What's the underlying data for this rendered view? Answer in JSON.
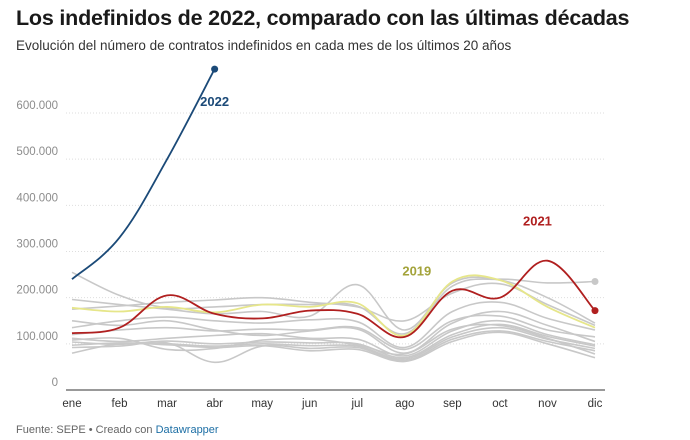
{
  "header": {
    "title": "Los indefinidos de 2022, comparado con las últimas décadas",
    "subtitle": "Evolución del número de contratos indefinidos en cada mes de los últimos 20 años"
  },
  "footer": {
    "source_text": "Fuente: SEPE • Creado con ",
    "link_text": "Datawrapper"
  },
  "colors": {
    "background_series": "#c8c8c8",
    "series_2022": "#1b4a78",
    "series_2021": "#b01f1f",
    "series_2019": "#e6e68a",
    "label_2019": "#a3a33a",
    "grid": "#dedede",
    "tick": "#8c8c8c"
  },
  "chart_data": {
    "type": "line",
    "title": "Los indefinidos de 2022, comparado con las últimas décadas",
    "subtitle": "Evolución del número de contratos indefinidos en cada mes de los últimos 20 años",
    "xlabel": "",
    "ylabel": "",
    "categories": [
      "ene",
      "feb",
      "mar",
      "abr",
      "may",
      "jun",
      "jul",
      "ago",
      "sep",
      "oct",
      "nov",
      "dic"
    ],
    "ylim": [
      0,
      600000
    ],
    "yticks": [
      0,
      100000,
      200000,
      300000,
      400000,
      500000,
      600000
    ],
    "ytick_labels": [
      "0",
      "100.000",
      "200.000",
      "300.000",
      "400.000",
      "500.000",
      "600.000"
    ],
    "grid": true,
    "highlighted": [
      {
        "name": "2022",
        "color": "#1b4a78",
        "label_color": "#1b4a78",
        "values": [
          240000,
          330000,
          500000,
          695000,
          null,
          null,
          null,
          null,
          null,
          null,
          null,
          null
        ]
      },
      {
        "name": "2021",
        "color": "#b01f1f",
        "label_color": "#b01f1f",
        "values": [
          123000,
          135000,
          205000,
          165000,
          155000,
          172000,
          165000,
          115000,
          215000,
          200000,
          280000,
          172000
        ]
      },
      {
        "name": "2019",
        "color": "#e6e68a",
        "label_color": "#a3a33a",
        "values": [
          178000,
          170000,
          180000,
          168000,
          185000,
          180000,
          188000,
          118000,
          235000,
          238000,
          180000,
          135000
        ]
      }
    ],
    "background_series": [
      {
        "values": [
          255000,
          205000,
          178000,
          180000,
          185000,
          185000,
          182000,
          122000,
          225000,
          240000,
          232000,
          235000
        ]
      },
      {
        "values": [
          196000,
          185000,
          175000,
          165000,
          170000,
          160000,
          228000,
          130000,
          232000,
          238000,
          200000,
          145000
        ]
      },
      {
        "values": [
          175000,
          182000,
          190000,
          195000,
          200000,
          190000,
          180000,
          150000,
          210000,
          230000,
          185000,
          140000
        ]
      },
      {
        "values": [
          135000,
          150000,
          158000,
          150000,
          145000,
          152000,
          148000,
          92000,
          170000,
          190000,
          155000,
          130000
        ]
      },
      {
        "values": [
          150000,
          140000,
          150000,
          130000,
          118000,
          128000,
          132000,
          80000,
          145000,
          170000,
          140000,
          105000
        ]
      },
      {
        "values": [
          112000,
          105000,
          112000,
          118000,
          122000,
          112000,
          110000,
          74000,
          128000,
          150000,
          120000,
          98000
        ]
      },
      {
        "values": [
          104000,
          99000,
          106000,
          100000,
          104000,
          102000,
          100000,
          70000,
          120000,
          142000,
          116000,
          95000
        ]
      },
      {
        "values": [
          97000,
          102000,
          100000,
          95000,
          100000,
          96000,
          95000,
          67000,
          115000,
          135000,
          110000,
          90000
        ]
      },
      {
        "values": [
          120000,
          130000,
          135000,
          128000,
          132000,
          130000,
          135000,
          88000,
          150000,
          160000,
          130000,
          115000
        ]
      },
      {
        "values": [
          92000,
          95000,
          102000,
          60000,
          95000,
          90000,
          92000,
          64000,
          110000,
          128000,
          105000,
          85000
        ]
      },
      {
        "values": [
          80000,
          100000,
          98000,
          92000,
          96000,
          85000,
          88000,
          62000,
          105000,
          125000,
          100000,
          70000
        ]
      },
      {
        "values": [
          108000,
          112000,
          88000,
          90000,
          108000,
          110000,
          98000,
          78000,
          132000,
          140000,
          112000,
          78000
        ]
      }
    ],
    "end_markers": [
      {
        "series": "2022",
        "index": 3
      },
      {
        "series": "2021",
        "index": 11
      },
      {
        "series": "background",
        "bg_index": 0,
        "index": 11
      }
    ],
    "annotations": [
      {
        "text": "2022",
        "series": "2022"
      },
      {
        "text": "2021",
        "series": "2021"
      },
      {
        "text": "2019",
        "series": "2019"
      }
    ]
  }
}
